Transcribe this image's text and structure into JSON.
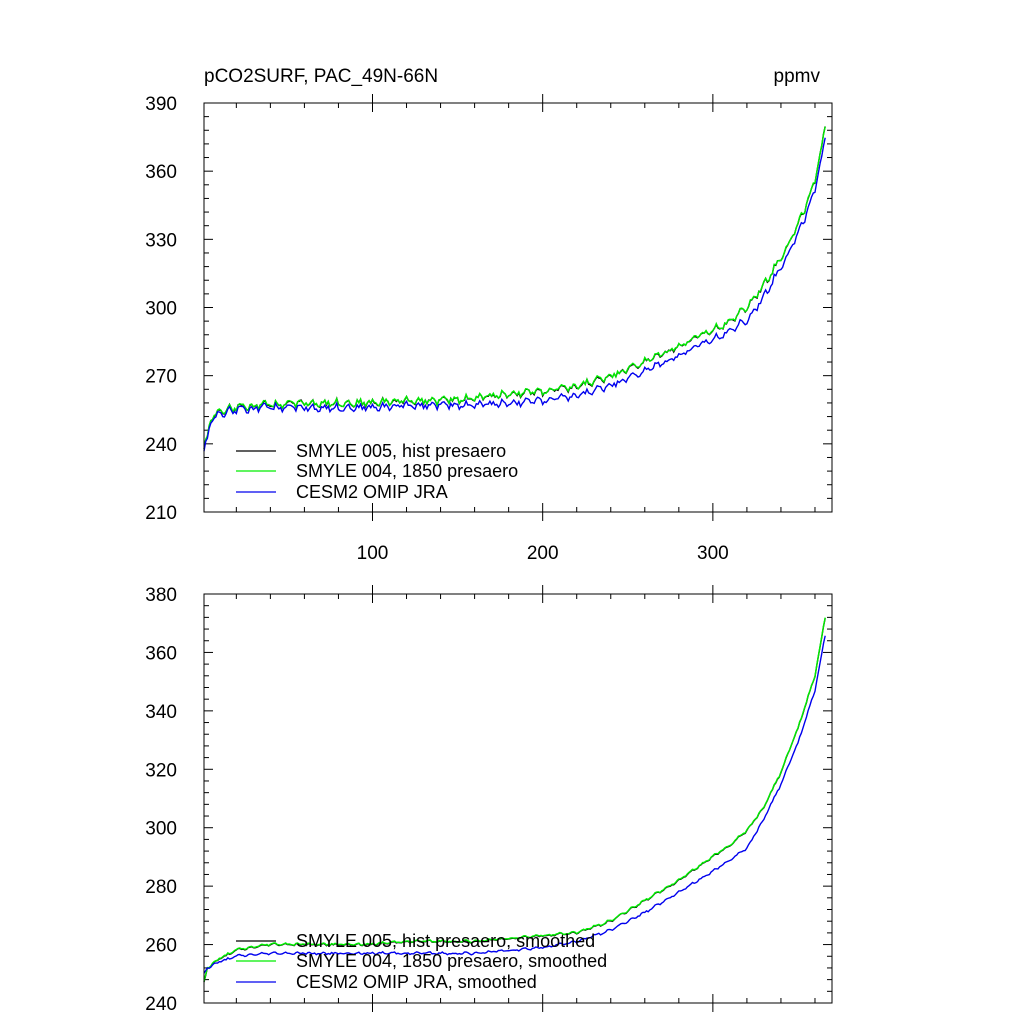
{
  "chart_data": [
    {
      "type": "line",
      "panel": "top",
      "title_left": "pCO2SURF, PAC_49N-66N",
      "title_right": "ppmv",
      "xlabel": "",
      "ylabel": "",
      "xlim": [
        1,
        370
      ],
      "ylim": [
        210,
        390
      ],
      "x_ticks": [
        100,
        200,
        300
      ],
      "x_tick_labels": [
        "100",
        "200",
        "300"
      ],
      "y_ticks": [
        210,
        240,
        270,
        300,
        330,
        360,
        390
      ],
      "y_tick_labels": [
        "210",
        "240",
        "270",
        "300",
        "330",
        "360",
        "390"
      ],
      "legend_position": "bottom-left",
      "noise": 1.6,
      "series": [
        {
          "name": "SMYLE 005, hist presaero",
          "color": "#000000",
          "points": [
            [
              1,
              237
            ],
            [
              5,
              251
            ],
            [
              10,
              254
            ],
            [
              20,
              256
            ],
            [
              40,
              257
            ],
            [
              60,
              258
            ],
            [
              80,
              258
            ],
            [
              100,
              258
            ],
            [
              120,
              259
            ],
            [
              140,
              259
            ],
            [
              160,
              260
            ],
            [
              180,
              262
            ],
            [
              200,
              263
            ],
            [
              220,
              265
            ],
            [
              240,
              270
            ],
            [
              260,
              276
            ],
            [
              280,
              283
            ],
            [
              300,
              290
            ],
            [
              310,
              294
            ],
            [
              320,
              300
            ],
            [
              330,
              310
            ],
            [
              340,
              322
            ],
            [
              350,
              336
            ],
            [
              360,
              355
            ],
            [
              366,
              380
            ]
          ]
        },
        {
          "name": "SMYLE 004, 1850 presaero",
          "color": "#00ee00",
          "points": [
            [
              1,
              237
            ],
            [
              5,
              251
            ],
            [
              10,
              254
            ],
            [
              20,
              256
            ],
            [
              40,
              257
            ],
            [
              60,
              258
            ],
            [
              80,
              258
            ],
            [
              100,
              258
            ],
            [
              120,
              259
            ],
            [
              140,
              259
            ],
            [
              160,
              260
            ],
            [
              180,
              262
            ],
            [
              200,
              263
            ],
            [
              220,
              265
            ],
            [
              240,
              270
            ],
            [
              260,
              276
            ],
            [
              280,
              283
            ],
            [
              300,
              290
            ],
            [
              310,
              294
            ],
            [
              320,
              300
            ],
            [
              330,
              310
            ],
            [
              340,
              322
            ],
            [
              350,
              336
            ],
            [
              360,
              355
            ],
            [
              366,
              380
            ]
          ]
        },
        {
          "name": "CESM2 OMIP JRA",
          "color": "#0000ee",
          "points": [
            [
              1,
              236
            ],
            [
              5,
              250
            ],
            [
              10,
              253
            ],
            [
              20,
              255
            ],
            [
              40,
              256
            ],
            [
              60,
              256
            ],
            [
              80,
              256
            ],
            [
              100,
              256
            ],
            [
              120,
              257
            ],
            [
              140,
              257
            ],
            [
              160,
              257
            ],
            [
              180,
              258
            ],
            [
              200,
              259
            ],
            [
              220,
              261
            ],
            [
              240,
              266
            ],
            [
              260,
              272
            ],
            [
              280,
              279
            ],
            [
              300,
              286
            ],
            [
              310,
              290
            ],
            [
              320,
              294
            ],
            [
              330,
              305
            ],
            [
              340,
              318
            ],
            [
              350,
              332
            ],
            [
              360,
              351
            ],
            [
              366,
              375
            ]
          ]
        }
      ]
    },
    {
      "type": "line",
      "panel": "bottom",
      "xlabel": "",
      "ylabel": "",
      "xlim": [
        1,
        370
      ],
      "ylim": [
        240,
        380
      ],
      "x_ticks": [
        100,
        200,
        300
      ],
      "y_ticks": [
        240,
        260,
        280,
        300,
        320,
        340,
        360,
        380
      ],
      "y_tick_labels": [
        "240",
        "260",
        "280",
        "300",
        "320",
        "340",
        "360",
        "380"
      ],
      "legend_position": "bottom-left",
      "noise": 0.4,
      "series": [
        {
          "name": "SMYLE 005, hist presaero, smoothed",
          "color": "#000000",
          "points": [
            [
              1,
              247
            ],
            [
              3,
              252
            ],
            [
              10,
              255
            ],
            [
              20,
              258
            ],
            [
              40,
              260
            ],
            [
              60,
              260
            ],
            [
              80,
              260
            ],
            [
              100,
              260
            ],
            [
              120,
              261
            ],
            [
              140,
              261
            ],
            [
              160,
              261
            ],
            [
              180,
              262
            ],
            [
              200,
              263
            ],
            [
              220,
              264
            ],
            [
              240,
              268
            ],
            [
              260,
              275
            ],
            [
              280,
              282
            ],
            [
              300,
              290
            ],
            [
              310,
              294
            ],
            [
              320,
              299
            ],
            [
              330,
              307
            ],
            [
              340,
              319
            ],
            [
              350,
              334
            ],
            [
              360,
              352
            ],
            [
              366,
              372
            ]
          ]
        },
        {
          "name": "SMYLE 004, 1850 presaero, smoothed",
          "color": "#00ee00",
          "points": [
            [
              1,
              247
            ],
            [
              3,
              252
            ],
            [
              10,
              255
            ],
            [
              20,
              258
            ],
            [
              40,
              260
            ],
            [
              60,
              260
            ],
            [
              80,
              260
            ],
            [
              100,
              260
            ],
            [
              120,
              261
            ],
            [
              140,
              261
            ],
            [
              160,
              261
            ],
            [
              180,
              262
            ],
            [
              200,
              263
            ],
            [
              220,
              264
            ],
            [
              240,
              268
            ],
            [
              260,
              275
            ],
            [
              280,
              282
            ],
            [
              300,
              290
            ],
            [
              310,
              294
            ],
            [
              320,
              299
            ],
            [
              330,
              307
            ],
            [
              340,
              319
            ],
            [
              350,
              334
            ],
            [
              360,
              352
            ],
            [
              366,
              372
            ]
          ]
        },
        {
          "name": "CESM2 OMIP JRA, smoothed",
          "color": "#0000ee",
          "points": [
            [
              1,
              250
            ],
            [
              3,
              252
            ],
            [
              10,
              254
            ],
            [
              20,
              256
            ],
            [
              40,
              257
            ],
            [
              60,
              257
            ],
            [
              80,
              257
            ],
            [
              100,
              257
            ],
            [
              120,
              257
            ],
            [
              140,
              257
            ],
            [
              160,
              257
            ],
            [
              180,
              258
            ],
            [
              200,
              259
            ],
            [
              220,
              261
            ],
            [
              240,
              265
            ],
            [
              260,
              271
            ],
            [
              280,
              278
            ],
            [
              300,
              285
            ],
            [
              310,
              289
            ],
            [
              320,
              293
            ],
            [
              330,
              303
            ],
            [
              340,
              315
            ],
            [
              350,
              329
            ],
            [
              360,
              347
            ],
            [
              366,
              366
            ]
          ]
        }
      ]
    }
  ]
}
